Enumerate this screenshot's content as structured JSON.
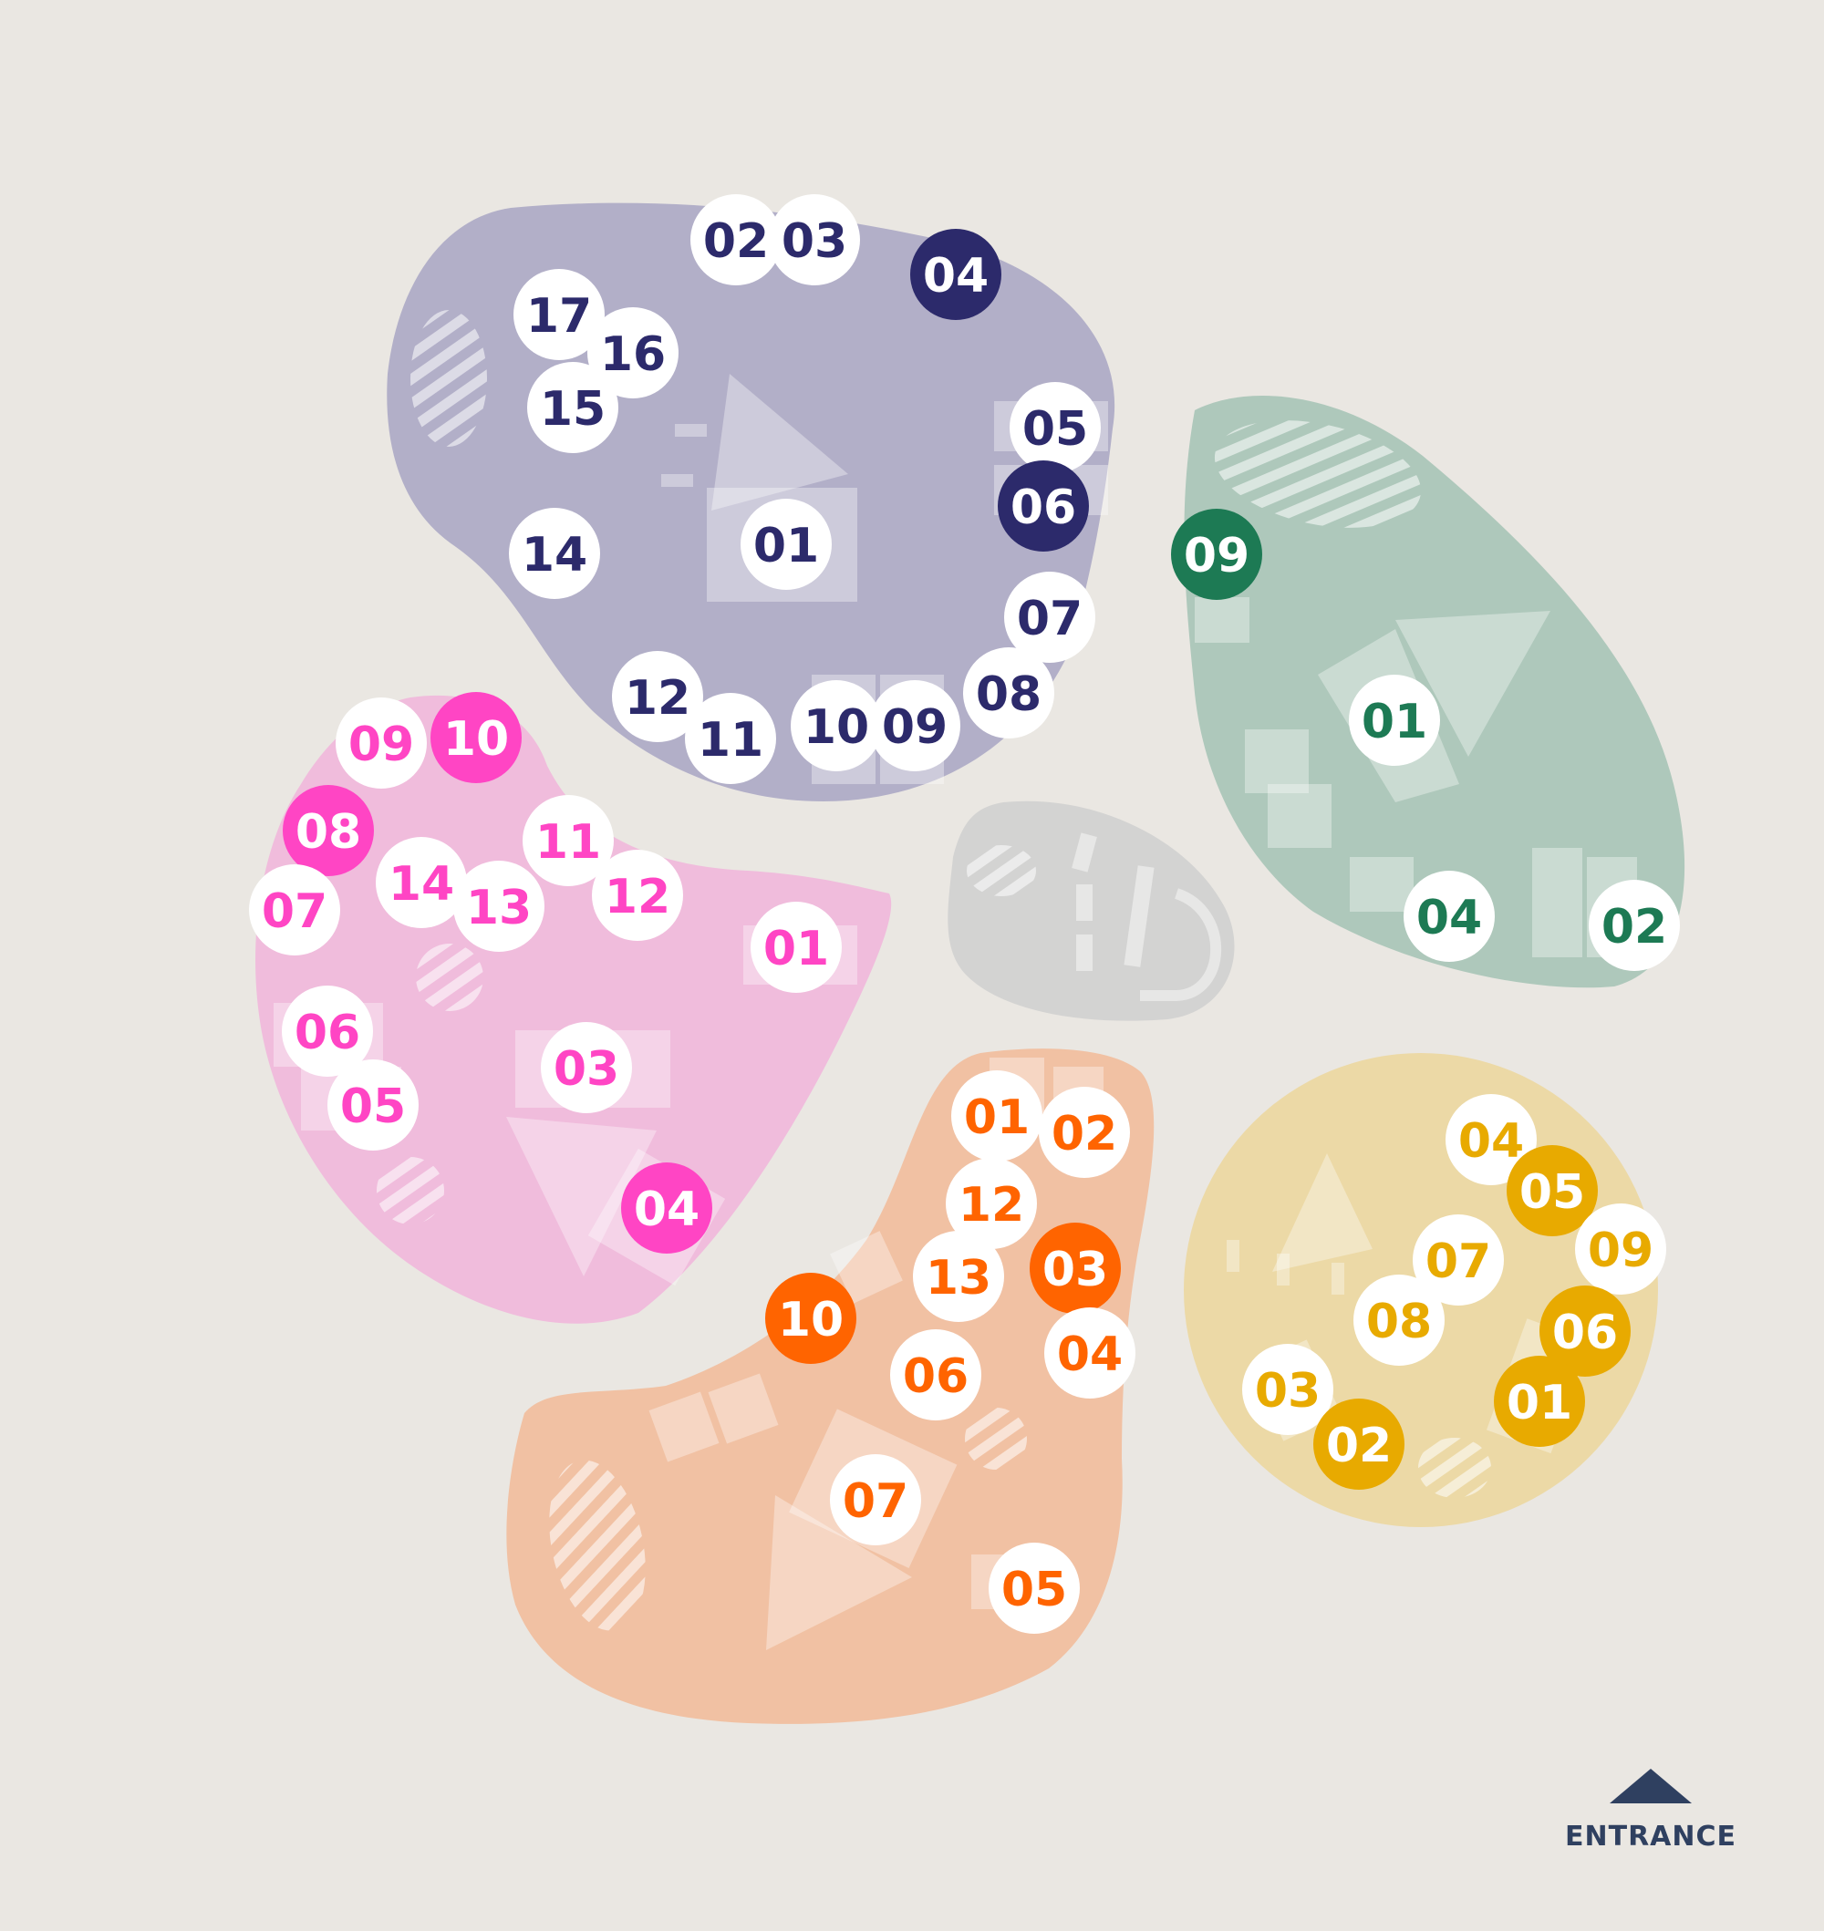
{
  "colors": {
    "background": "#eae7e2",
    "marker_fill": "#ffffff",
    "entrance": "#2f4060"
  },
  "zones": [
    {
      "id": "purple",
      "fill": "#b2afc8",
      "text_color": "#2c2a6b",
      "highlight_color": "#2c2a6b",
      "markers": [
        {
          "label": "02",
          "highlight": false
        },
        {
          "label": "03",
          "highlight": false
        },
        {
          "label": "04",
          "highlight": true
        },
        {
          "label": "17",
          "highlight": false
        },
        {
          "label": "16",
          "highlight": false
        },
        {
          "label": "15",
          "highlight": false
        },
        {
          "label": "05",
          "highlight": false
        },
        {
          "label": "06",
          "highlight": true
        },
        {
          "label": "14",
          "highlight": false
        },
        {
          "label": "01",
          "highlight": false
        },
        {
          "label": "07",
          "highlight": false
        },
        {
          "label": "08",
          "highlight": false
        },
        {
          "label": "12",
          "highlight": false
        },
        {
          "label": "11",
          "highlight": false
        },
        {
          "label": "10",
          "highlight": false
        },
        {
          "label": "09",
          "highlight": false
        }
      ]
    },
    {
      "id": "green",
      "fill": "#aec8bb",
      "text_color": "#1d7a54",
      "highlight_color": "#1d7a54",
      "markers": [
        {
          "label": "09",
          "highlight": true
        },
        {
          "label": "01",
          "highlight": false
        },
        {
          "label": "04",
          "highlight": false
        },
        {
          "label": "02",
          "highlight": false
        }
      ]
    },
    {
      "id": "pink",
      "fill": "#f0bcdc",
      "text_color": "#ff45c4",
      "highlight_color": "#ff45c4",
      "markers": [
        {
          "label": "09",
          "highlight": false
        },
        {
          "label": "10",
          "highlight": true
        },
        {
          "label": "08",
          "highlight": true
        },
        {
          "label": "11",
          "highlight": false
        },
        {
          "label": "14",
          "highlight": false
        },
        {
          "label": "12",
          "highlight": false
        },
        {
          "label": "13",
          "highlight": false
        },
        {
          "label": "07",
          "highlight": false
        },
        {
          "label": "01",
          "highlight": false
        },
        {
          "label": "06",
          "highlight": false
        },
        {
          "label": "03",
          "highlight": false
        },
        {
          "label": "05",
          "highlight": false
        },
        {
          "label": "04",
          "highlight": true
        }
      ]
    },
    {
      "id": "grey",
      "fill": "#d3d3d2",
      "text_color": "#9a9a9a",
      "highlight_color": "#9a9a9a",
      "markers": []
    },
    {
      "id": "orange",
      "fill": "#f1c1a3",
      "text_color": "#ff6400",
      "highlight_color": "#ff6400",
      "markers": [
        {
          "label": "01",
          "highlight": false
        },
        {
          "label": "02",
          "highlight": false
        },
        {
          "label": "12",
          "highlight": false
        },
        {
          "label": "13",
          "highlight": false
        },
        {
          "label": "03",
          "highlight": true
        },
        {
          "label": "10",
          "highlight": true
        },
        {
          "label": "04",
          "highlight": false
        },
        {
          "label": "06",
          "highlight": false
        },
        {
          "label": "07",
          "highlight": false
        },
        {
          "label": "05",
          "highlight": false
        }
      ]
    },
    {
      "id": "yellow",
      "fill": "#ecd9a6",
      "text_color": "#e8aa00",
      "highlight_color": "#e8aa00",
      "markers": [
        {
          "label": "04",
          "highlight": false
        },
        {
          "label": "05",
          "highlight": true
        },
        {
          "label": "09",
          "highlight": false
        },
        {
          "label": "07",
          "highlight": false
        },
        {
          "label": "08",
          "highlight": false
        },
        {
          "label": "06",
          "highlight": true
        },
        {
          "label": "03",
          "highlight": false
        },
        {
          "label": "01",
          "highlight": true
        },
        {
          "label": "02",
          "highlight": true
        }
      ]
    }
  ],
  "entrance": {
    "label": "ENTRANCE",
    "icon": "entrance-arrow-icon"
  }
}
